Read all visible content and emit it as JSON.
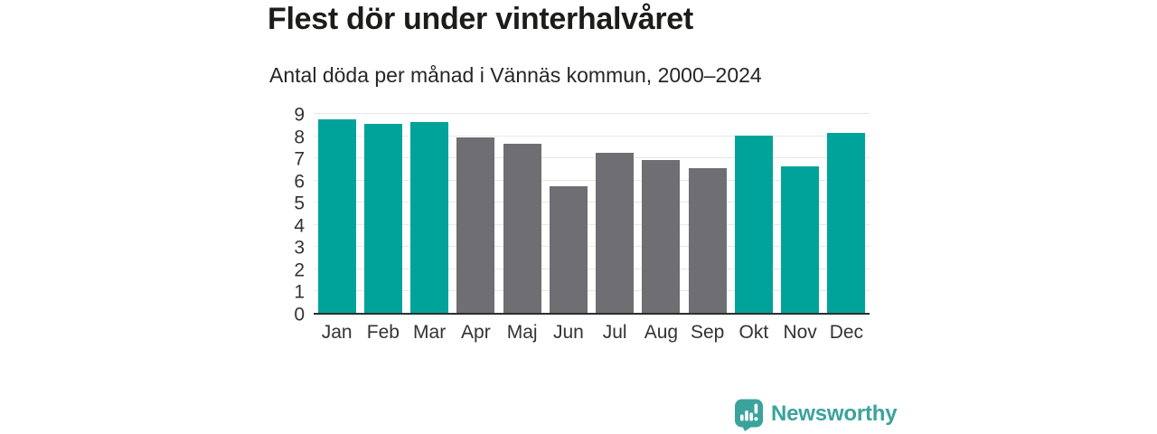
{
  "chart_data": {
    "type": "bar",
    "title": "Flest dör under vinterhalvåret",
    "subtitle": "Antal döda per månad i Vännäs kommun, 2000–2024",
    "categories": [
      "Jan",
      "Feb",
      "Mar",
      "Apr",
      "Maj",
      "Jun",
      "Jul",
      "Aug",
      "Sep",
      "Okt",
      "Nov",
      "Dec"
    ],
    "values": [
      8.7,
      8.5,
      8.6,
      7.9,
      7.6,
      5.7,
      7.2,
      6.9,
      6.5,
      8.0,
      6.6,
      8.1
    ],
    "bar_colors": [
      "#00a39a",
      "#00a39a",
      "#00a39a",
      "#6e6e73",
      "#6e6e73",
      "#6e6e73",
      "#6e6e73",
      "#6e6e73",
      "#6e6e73",
      "#00a39a",
      "#00a39a",
      "#00a39a"
    ],
    "highlight_color": "#00a39a",
    "base_color": "#6e6e73",
    "xlabel": "",
    "ylabel": "",
    "ylim": [
      0,
      9
    ],
    "yticks": [
      0,
      1,
      2,
      3,
      4,
      5,
      6,
      7,
      8,
      9
    ],
    "grid": true,
    "legend": false
  },
  "branding": {
    "logo_text": "Newsworthy",
    "logo_color": "#3aa39c",
    "logo_icon": "bar-chart-speech-bubble"
  },
  "colors": {
    "background": "#ffffff",
    "title_text": "#1c1c1a",
    "subtitle_text": "#262624",
    "axis_text": "#333333",
    "gridline": "#e7e7e7",
    "baseline": "#2d2d2d"
  }
}
